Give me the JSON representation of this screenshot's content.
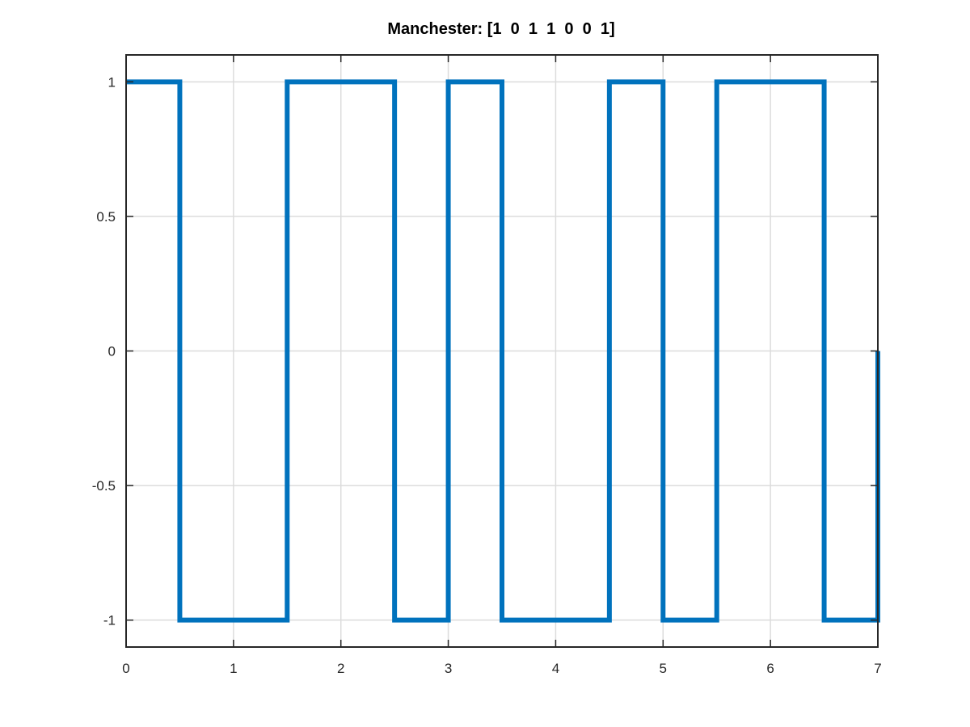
{
  "chart_data": {
    "type": "line",
    "title": "Manchester: [1  0  1  1  0  0  1]",
    "xlabel": "",
    "ylabel": "",
    "xlim": [
      0,
      7
    ],
    "ylim": [
      -1.1,
      1.1
    ],
    "xticks": [
      0,
      1,
      2,
      3,
      4,
      5,
      6,
      7
    ],
    "xtick_labels": [
      "0",
      "1",
      "2",
      "3",
      "4",
      "5",
      "6",
      "7"
    ],
    "yticks": [
      1,
      0.5,
      0,
      -0.5,
      -1
    ],
    "ytick_labels": [
      "1",
      "0.5",
      "0",
      "-0.5",
      "-1"
    ],
    "grid": true,
    "legend": "none",
    "colors": {
      "series": "#0072bd",
      "grid": "#dcdcdc",
      "axes": "#262626"
    },
    "series": [
      {
        "x": [
          0,
          0.5,
          0.5,
          1.5,
          1.5,
          2.5,
          2.5,
          3.0,
          3.0,
          3.5,
          3.5,
          4.5,
          4.5,
          5.0,
          5.0,
          5.5,
          5.5,
          6.5,
          6.5,
          7.0,
          7.0
        ],
        "y": [
          1,
          1,
          -1,
          -1,
          1,
          1,
          -1,
          -1,
          1,
          1,
          -1,
          -1,
          1,
          1,
          -1,
          -1,
          1,
          1,
          -1,
          -1,
          0
        ]
      }
    ]
  }
}
